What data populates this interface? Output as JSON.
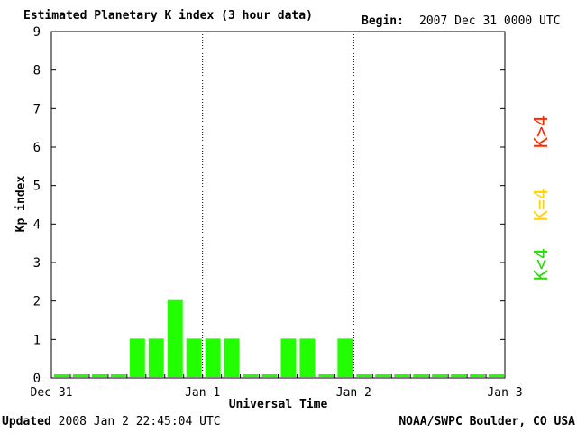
{
  "header": {
    "title": "Estimated Planetary K index (3 hour data)",
    "begin_label": "Begin:",
    "begin_value": "2007 Dec 31 0000 UTC"
  },
  "footer": {
    "updated_label": "Updated",
    "updated_value": "2008 Jan  2 22:45:04 UTC",
    "source": "NOAA/SWPC Boulder, CO USA"
  },
  "legend": [
    {
      "label": "K>4",
      "color": "#ff2a00"
    },
    {
      "label": "K=4",
      "color": "#ffd400"
    },
    {
      "label": "K<4",
      "color": "#22dd00"
    }
  ],
  "chart_data": {
    "type": "bar",
    "title": "Estimated Planetary K index (3 hour data)",
    "xlabel": "Universal Time",
    "ylabel": "Kp index",
    "ylim": [
      0,
      9
    ],
    "yticks": [
      0,
      1,
      2,
      3,
      4,
      5,
      6,
      7,
      8,
      9
    ],
    "xticks": [
      "Dec 31",
      "Jan 1",
      "Jan 2",
      "Jan 3"
    ],
    "interval_hours": 3,
    "bar_color": "#22ff00",
    "day_separators": [
      "Jan 1",
      "Jan 2"
    ],
    "values": [
      0,
      0,
      0,
      0,
      1,
      1,
      2,
      1,
      1,
      1,
      0,
      0,
      1,
      1,
      0,
      1,
      0,
      0,
      0,
      0,
      0,
      0,
      0,
      0
    ]
  }
}
